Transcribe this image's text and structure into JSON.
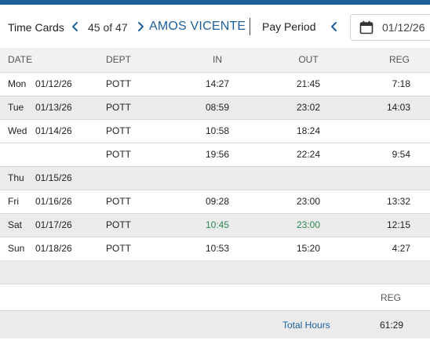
{
  "colors": {
    "accent": "#1d5f9c",
    "highlight": "#2e8b57"
  },
  "header": {
    "title": "Time Cards",
    "record_position": "45 of 47",
    "employee_name": "AMOS VICENTE",
    "pay_period_label": "Pay Period",
    "pay_period_date": "01/12/26",
    "icons": [
      "chevron-left-icon",
      "chevron-right-icon",
      "calendar-icon"
    ]
  },
  "columns": {
    "date": "DATE",
    "dept": "DEPT",
    "in": "IN",
    "out": "OUT",
    "reg": "REG"
  },
  "rows": [
    {
      "day": "Mon",
      "date": "01/12/26",
      "dept": "POTT",
      "in": "14:27",
      "out": "21:45",
      "reg": "7:18"
    },
    {
      "day": "Tue",
      "date": "01/13/26",
      "dept": "POTT",
      "in": "08:59",
      "out": "23:02",
      "reg": "14:03"
    },
    {
      "day": "Wed",
      "date": "01/14/26",
      "dept": "POTT",
      "in": "10:58",
      "out": "18:24",
      "reg": ""
    },
    {
      "day": "",
      "date": "",
      "dept": "POTT",
      "in": "19:56",
      "out": "22:24",
      "reg": "9:54"
    },
    {
      "day": "Thu",
      "date": "01/15/26",
      "dept": "",
      "in": "",
      "out": "",
      "reg": ""
    },
    {
      "day": "Fri",
      "date": "01/16/26",
      "dept": "POTT",
      "in": "09:28",
      "out": "23:00",
      "reg": "13:32"
    },
    {
      "day": "Sat",
      "date": "01/17/26",
      "dept": "POTT",
      "in": "10:45",
      "out": "23:00",
      "reg": "12:15"
    },
    {
      "day": "Sun",
      "date": "01/18/26",
      "dept": "POTT",
      "in": "10:53",
      "out": "15:20",
      "reg": "4:27"
    }
  ],
  "summary": {
    "reg_header": "REG",
    "total_label": "Total Hours",
    "total_reg": "61:29"
  }
}
